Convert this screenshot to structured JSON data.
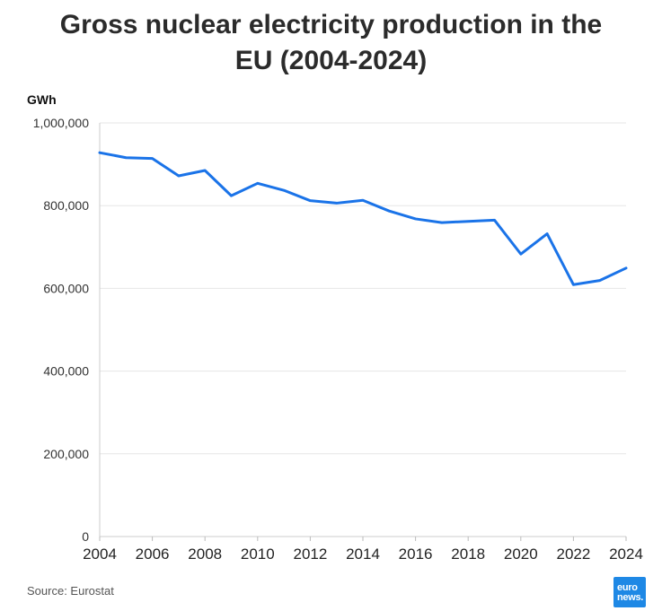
{
  "chart_data": {
    "type": "line",
    "title_lines": [
      "Gross nuclear electricity production in the",
      "EU (2004-2024)"
    ],
    "ylabel": "GWh",
    "x": [
      2004,
      2005,
      2006,
      2007,
      2008,
      2009,
      2010,
      2011,
      2012,
      2013,
      2014,
      2015,
      2016,
      2017,
      2018,
      2019,
      2020,
      2021,
      2022,
      2023,
      2024
    ],
    "series": [
      {
        "values": [
          928000,
          916000,
          914000,
          872000,
          885000,
          824000,
          854000,
          837000,
          812000,
          806000,
          813000,
          787000,
          768000,
          759000,
          762000,
          765000,
          683000,
          732000,
          609000,
          619000,
          649000
        ]
      }
    ],
    "ylim": [
      0,
      1000000
    ],
    "yticks": [
      {
        "value": 0,
        "label": "0"
      },
      {
        "value": 200000,
        "label": "200,000"
      },
      {
        "value": 400000,
        "label": "400,000"
      },
      {
        "value": 600000,
        "label": "600,000"
      },
      {
        "value": 800000,
        "label": "800,000"
      },
      {
        "value": 1000000,
        "label": "1,000,000"
      }
    ],
    "xticks": [
      {
        "value": 2004,
        "label": "2004"
      },
      {
        "value": 2006,
        "label": "2006"
      },
      {
        "value": 2008,
        "label": "2008"
      },
      {
        "value": 2010,
        "label": "2010"
      },
      {
        "value": 2012,
        "label": "2012"
      },
      {
        "value": 2014,
        "label": "2014"
      },
      {
        "value": 2016,
        "label": "2016"
      },
      {
        "value": 2018,
        "label": "2018"
      },
      {
        "value": 2020,
        "label": "2020"
      },
      {
        "value": 2022,
        "label": "2022"
      },
      {
        "value": 2024,
        "label": "2024"
      }
    ],
    "grid": true,
    "line_color": "#1a73e8"
  },
  "source": "Source: Eurostat",
  "logo": {
    "line1": "euro",
    "line2": "news."
  }
}
